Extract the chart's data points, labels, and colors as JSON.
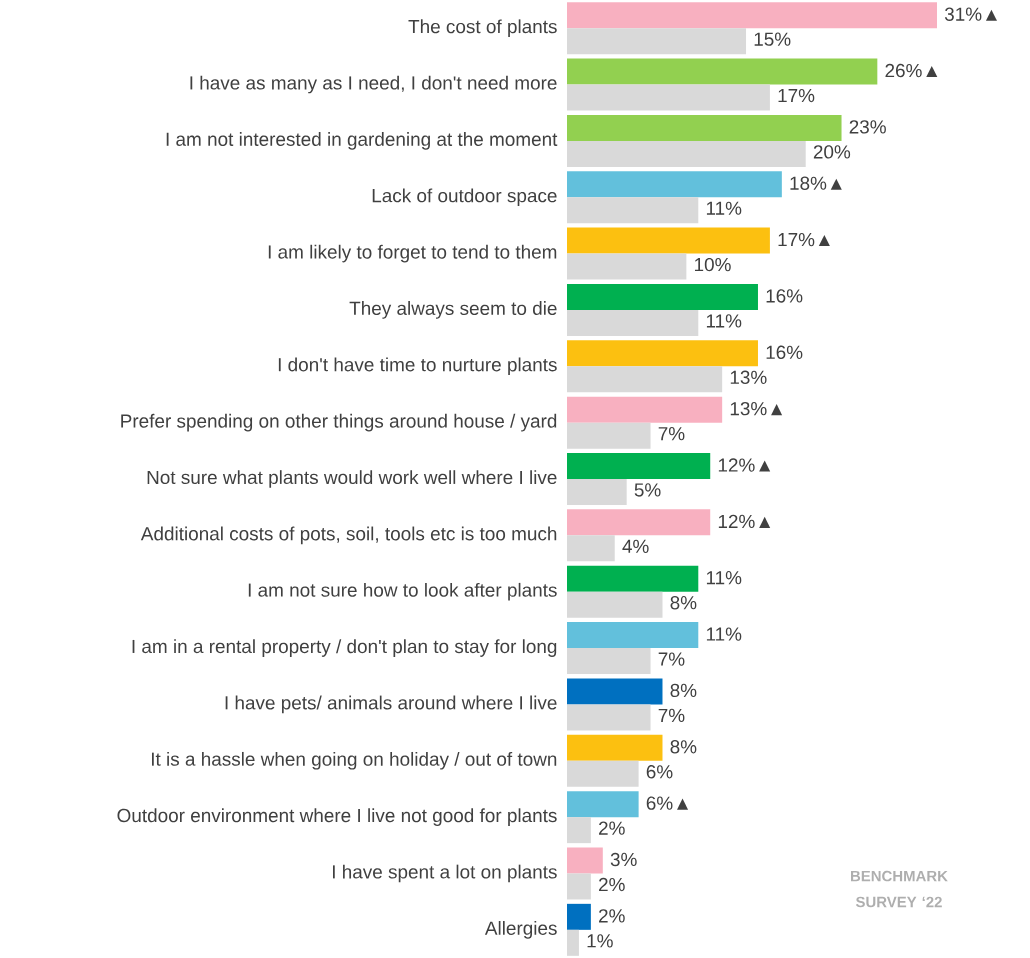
{
  "chart_data": {
    "type": "bar",
    "orientation": "horizontal",
    "categories": [
      "The cost of plants",
      "I have as many as I need, I don't need more",
      "I am not interested in gardening at the moment",
      "Lack of outdoor space",
      "I am likely to forget to tend to them",
      "They always seem to die",
      "I don't have time to nurture plants",
      "Prefer spending on other things around house / yard",
      "Not sure what plants would work well where I live",
      "Additional costs of pots, soil, tools etc is too much",
      "I am not sure how to look after plants",
      "I am in a rental property / don't plan to stay for long",
      "I have pets/ animals around where I live",
      "It is a hassle when going on holiday / out of town",
      "Outdoor environment where I live not good for plants",
      "I have spent a lot on plants",
      "Allergies"
    ],
    "series": [
      {
        "colors": [
          "#f8b0c0",
          "#92d050",
          "#92d050",
          "#62c0dc",
          "#fcc010",
          "#00b050",
          "#fcc010",
          "#f8b0c0",
          "#00b050",
          "#f8b0c0",
          "#00b050",
          "#62c0dc",
          "#0070c0",
          "#fcc010",
          "#62c0dc",
          "#f8b0c0",
          "#0070c0"
        ],
        "values": [
          31,
          26,
          23,
          18,
          17,
          16,
          16,
          13,
          12,
          12,
          11,
          11,
          8,
          8,
          6,
          3,
          2
        ],
        "value_labels": [
          "31%▲",
          "26%▲",
          "23%",
          "18%▲",
          "17%▲",
          "16%",
          "16%",
          "13%▲",
          "12%▲",
          "12%▲",
          "11%",
          "11%",
          "8%",
          "8%",
          "6%▲",
          "3%",
          "2%"
        ]
      },
      {
        "name": "BENCHMARK SURVEY ‘22",
        "color": "#d9d9d9",
        "values": [
          15,
          17,
          20,
          11,
          10,
          11,
          13,
          7,
          5,
          4,
          8,
          7,
          7,
          6,
          2,
          2,
          1
        ],
        "value_labels": [
          "15%",
          "17%",
          "20%",
          "11%",
          "10%",
          "11%",
          "13%",
          "7%",
          "5%",
          "4%",
          "8%",
          "7%",
          "7%",
          "6%",
          "2%",
          "2%",
          "1%"
        ]
      }
    ]
  }
}
